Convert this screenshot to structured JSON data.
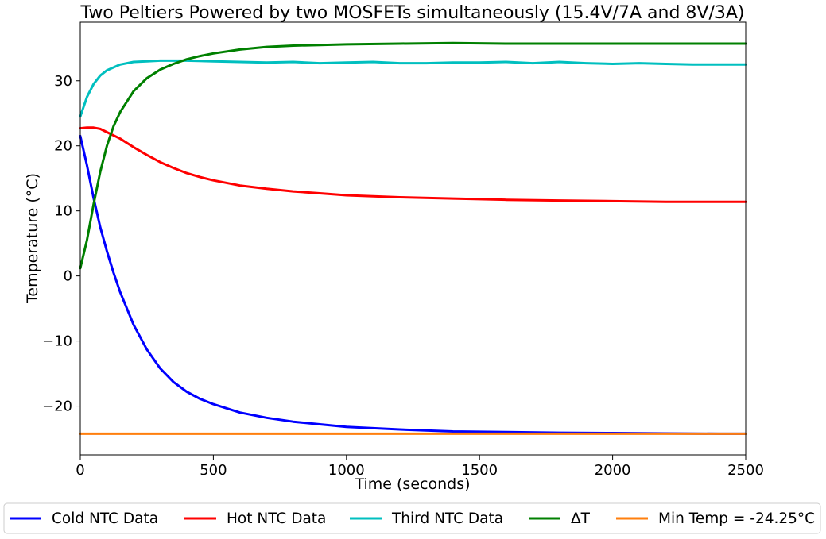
{
  "chart_data": {
    "type": "line",
    "title": "Two Peltiers Powered by two MOSFETs simultaneously (15.4V/7A and 8V/3A)",
    "xlabel": "Time (seconds)",
    "ylabel": "Temperature (°C)",
    "xlim": [
      0,
      2500
    ],
    "ylim": [
      -27.5,
      39
    ],
    "xticks": [
      0,
      500,
      1000,
      1500,
      2000,
      2500
    ],
    "xtick_labels": [
      "0",
      "500",
      "1000",
      "1500",
      "2000",
      "2500"
    ],
    "yticks": [
      -20,
      -10,
      0,
      10,
      20,
      30
    ],
    "ytick_labels": [
      "−20",
      "−10",
      "0",
      "10",
      "20",
      "30"
    ],
    "grid": false,
    "legend_placement": "bottom-outside",
    "series": [
      {
        "name": "Cold NTC Data",
        "color": "#0000ff",
        "x": [
          0,
          25,
          50,
          75,
          100,
          125,
          150,
          200,
          250,
          300,
          350,
          400,
          450,
          500,
          600,
          700,
          800,
          900,
          1000,
          1200,
          1400,
          1600,
          1800,
          2000,
          2200,
          2400,
          2500
        ],
        "y": [
          21.5,
          17,
          12,
          7.5,
          3.8,
          0.5,
          -2.5,
          -7.5,
          -11.3,
          -14.2,
          -16.3,
          -17.8,
          -18.9,
          -19.7,
          -21,
          -21.8,
          -22.4,
          -22.8,
          -23.2,
          -23.6,
          -23.9,
          -24.0,
          -24.1,
          -24.15,
          -24.2,
          -24.25,
          -24.25
        ]
      },
      {
        "name": "Hot NTC Data",
        "color": "#ff0000",
        "x": [
          0,
          25,
          50,
          75,
          100,
          150,
          200,
          250,
          300,
          350,
          400,
          450,
          500,
          600,
          700,
          800,
          900,
          1000,
          1200,
          1400,
          1600,
          1800,
          2000,
          2200,
          2400,
          2500
        ],
        "y": [
          22.7,
          22.8,
          22.8,
          22.6,
          22.1,
          21.1,
          19.8,
          18.6,
          17.5,
          16.6,
          15.8,
          15.2,
          14.7,
          13.9,
          13.4,
          13.0,
          12.7,
          12.4,
          12.1,
          11.9,
          11.7,
          11.6,
          11.5,
          11.4,
          11.4,
          11.4
        ]
      },
      {
        "name": "Third NTC Data",
        "color": "#00bfbf",
        "x": [
          0,
          25,
          50,
          75,
          100,
          150,
          200,
          250,
          300,
          400,
          500,
          600,
          700,
          800,
          900,
          1000,
          1100,
          1200,
          1300,
          1400,
          1500,
          1600,
          1700,
          1800,
          1900,
          2000,
          2100,
          2200,
          2300,
          2400,
          2500
        ],
        "y": [
          24.5,
          27.5,
          29.5,
          30.8,
          31.6,
          32.5,
          32.9,
          33.0,
          33.1,
          33.1,
          33.0,
          32.9,
          32.8,
          32.9,
          32.7,
          32.8,
          32.9,
          32.7,
          32.7,
          32.8,
          32.8,
          32.9,
          32.7,
          32.9,
          32.7,
          32.6,
          32.7,
          32.6,
          32.5,
          32.5,
          32.5
        ]
      },
      {
        "name": "ΔT",
        "color": "#008000",
        "x": [
          0,
          25,
          50,
          75,
          100,
          125,
          150,
          200,
          250,
          300,
          350,
          400,
          450,
          500,
          600,
          700,
          800,
          900,
          1000,
          1200,
          1400,
          1600,
          1800,
          2000,
          2200,
          2400,
          2500
        ],
        "y": [
          1.2,
          5.5,
          11,
          16,
          20,
          23,
          25.2,
          28.4,
          30.4,
          31.7,
          32.6,
          33.3,
          33.8,
          34.2,
          34.8,
          35.2,
          35.4,
          35.5,
          35.6,
          35.7,
          35.8,
          35.7,
          35.7,
          35.7,
          35.7,
          35.7,
          35.7
        ]
      },
      {
        "name": "Min Temp = -24.25°C",
        "color": "#ff7f0e",
        "x": [
          0,
          2500
        ],
        "y": [
          -24.25,
          -24.25
        ]
      }
    ]
  }
}
